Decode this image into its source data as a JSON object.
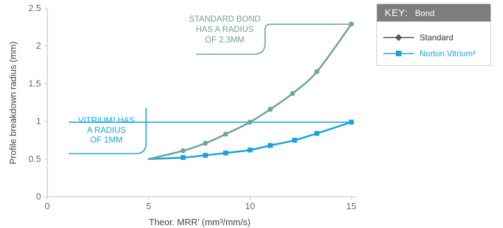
{
  "chart_data": {
    "type": "line",
    "xlabel": "Theor. MRR’ (mm³/mm/s)",
    "ylabel": "Profile breakdown radius (mm)",
    "xlim": [
      0,
      15
    ],
    "ylim": [
      0,
      2.5
    ],
    "xticks": [
      "0",
      "5",
      "10",
      "15"
    ],
    "yticks": [
      "0",
      "0.5",
      "1",
      "1.5",
      "2",
      "2.5"
    ],
    "grid": false,
    "series": [
      {
        "name": "Standard",
        "color": "#6fa592",
        "marker": "circle",
        "x": [
          5,
          6.7,
          7.8,
          8.8,
          10,
          11,
          12.1,
          13.3,
          15
        ],
        "y": [
          0.5,
          0.61,
          0.71,
          0.83,
          0.99,
          1.16,
          1.37,
          1.66,
          2.29
        ]
      },
      {
        "name": "Norton Vitrium³",
        "color": "#1aa3d9",
        "marker": "square",
        "x": [
          5,
          6.7,
          7.8,
          8.8,
          10,
          11,
          12.2,
          13.3,
          15
        ],
        "y": [
          0.5,
          0.52,
          0.55,
          0.58,
          0.62,
          0.68,
          0.75,
          0.84,
          0.99
        ]
      }
    ],
    "annotations": [
      {
        "text": [
          "STANDARD BOND",
          "HAS A RADIUS",
          "OF 2.3MM"
        ],
        "color": "#6fa592"
      },
      {
        "text": [
          "VITRIUM³ HAS",
          "A RADIUS",
          "OF 1MM"
        ],
        "color": "#1aa3d9"
      }
    ]
  },
  "legend": {
    "title": "KEY:",
    "subtitle": "Bond",
    "header_color": "#7d7d7d",
    "items": [
      {
        "label": "Standard",
        "color": "#555555",
        "text_color": "#333333",
        "marker": "diamond"
      },
      {
        "label": "Norton Vitrium³",
        "color": "#1aa3d9",
        "text_color": "#1aa3d9",
        "marker": "square"
      }
    ]
  }
}
